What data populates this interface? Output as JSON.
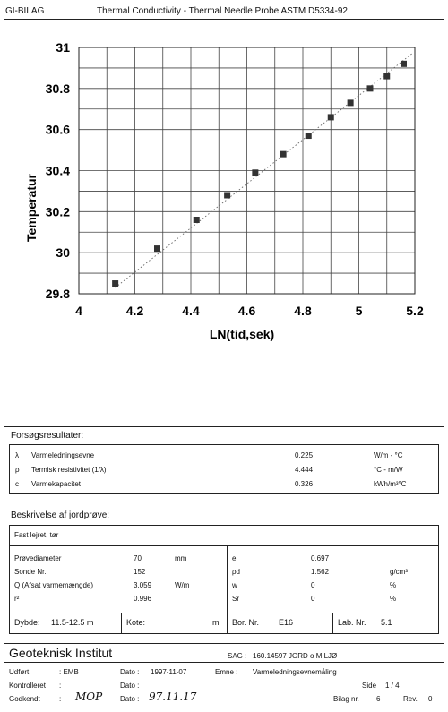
{
  "header": {
    "company": "GI-BILAG",
    "title": "Thermal Conductivity - Thermal Needle Probe ASTM D5334-92"
  },
  "chart_data": {
    "type": "scatter",
    "xlabel": "LN(tid,sek)",
    "ylabel": "Temperatur",
    "xlim": [
      4,
      5.2
    ],
    "ylim": [
      29.8,
      31
    ],
    "x_ticks": [
      "4",
      "4.2",
      "4.4",
      "4.6",
      "4.8",
      "5",
      "5.2"
    ],
    "y_ticks": [
      "29.8",
      "30",
      "30.2",
      "30.4",
      "30.6",
      "30.8",
      "31"
    ],
    "grid": true,
    "points": [
      {
        "x": 4.13,
        "y": 29.85
      },
      {
        "x": 4.28,
        "y": 30.02
      },
      {
        "x": 4.42,
        "y": 30.16
      },
      {
        "x": 4.53,
        "y": 30.28
      },
      {
        "x": 4.63,
        "y": 30.39
      },
      {
        "x": 4.73,
        "y": 30.48
      },
      {
        "x": 4.82,
        "y": 30.57
      },
      {
        "x": 4.9,
        "y": 30.66
      },
      {
        "x": 4.97,
        "y": 30.73
      },
      {
        "x": 5.04,
        "y": 30.8
      },
      {
        "x": 5.1,
        "y": 30.86
      },
      {
        "x": 5.16,
        "y": 30.92
      }
    ],
    "trendline": {
      "x": [
        4.13,
        5.19
      ],
      "y": [
        29.83,
        30.97
      ]
    }
  },
  "results": {
    "heading": "Forsøgsresultater:",
    "rows": [
      {
        "symbol": "λ",
        "label": "Varmeledningsevne",
        "value": "0.225",
        "unit": "W/m - °C"
      },
      {
        "symbol": "ρ",
        "label": "Termisk resistivitet (1/λ)",
        "value": "4.444",
        "unit": "°C - m/W"
      },
      {
        "symbol": "c",
        "label": "Varmekapacitet",
        "value": "0.326",
        "unit": "kWh/m³°C"
      }
    ]
  },
  "sample": {
    "heading": "Beskrivelse af jordprøve:",
    "description": "Fast lejret, tør",
    "left": [
      {
        "label": "Prøvediameter",
        "value": "70",
        "unit": "mm"
      },
      {
        "label": "Sonde Nr.",
        "value": "152",
        "unit": ""
      },
      {
        "label": "Q (Afsat varmemængde)",
        "value": "3.059",
        "unit": "W/m"
      },
      {
        "label": "r²",
        "value": "0.996",
        "unit": ""
      }
    ],
    "right": [
      {
        "label": "e",
        "value": "0.697",
        "unit": ""
      },
      {
        "label": "ρd",
        "value": "1.562",
        "unit": "g/cm³"
      },
      {
        "label": "w",
        "value": "0",
        "unit": "%"
      },
      {
        "label": "Sr",
        "value": "0",
        "unit": "%"
      }
    ],
    "dybde_label": "Dybde:",
    "dybde_value": "11.5-12.5 m",
    "kote_label": "Kote:",
    "kote_unit": "m",
    "bor_label": "Bor. Nr.",
    "bor_value": "E16",
    "lab_label": "Lab. Nr.",
    "lab_value": "5.1"
  },
  "footer": {
    "institute": "Geoteknisk Institut",
    "sag_label": "SAG :",
    "sag_value": "160.14597 JORD o MILJØ",
    "udfort_label": "Udført",
    "udfort_value": ": EMB",
    "kontrolleret_label": "Kontrolleret",
    "kontrolleret_value": ":",
    "godkendt_label": "Godkendt",
    "godkendt_value": ":",
    "godkendt_sign": "MOP",
    "dato_label": "Dato :",
    "dato1_value": "1997-11-07",
    "dato2_value": "",
    "dato3_label": "Dato :",
    "dato3_value": "97.11.17",
    "emne_label": "Emne :",
    "emne_value": "Varmeledningsevnemåling",
    "side_label": "Side",
    "side_value": "1 / 4",
    "bilag_label": "Bilag nr.",
    "bilag_value": "6",
    "rev_label": "Rev.",
    "rev_value": "0"
  }
}
